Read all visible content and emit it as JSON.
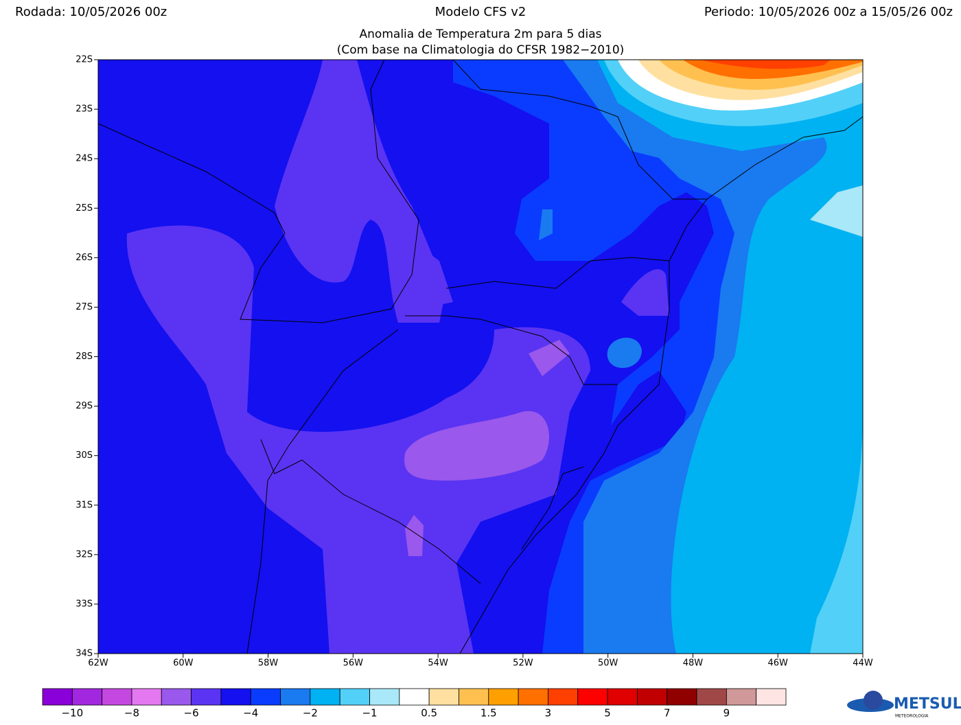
{
  "header": {
    "run": "Rodada: 10/05/2026 00z",
    "model": "Modelo CFS v2",
    "period": "Periodo: 10/05/2026 00z a 15/05/26 00z"
  },
  "title": {
    "line1": "Anomalia de Temperatura 2m para 5 dias",
    "line2": "(Com base na Climatologia do CFSR 1982−2010)"
  },
  "map": {
    "lat_labels": [
      "22S",
      "23S",
      "24S",
      "25S",
      "26S",
      "27S",
      "28S",
      "29S",
      "30S",
      "31S",
      "32S",
      "33S",
      "34S"
    ],
    "lon_labels": [
      "62W",
      "60W",
      "58W",
      "56W",
      "54W",
      "52W",
      "50W",
      "48W",
      "46W",
      "44W"
    ]
  },
  "colorbar": {
    "colors": [
      "#8a00d8",
      "#a228e0",
      "#c448e0",
      "#e478f0",
      "#9a58ec",
      "#5a34f2",
      "#1410f0",
      "#0a3cff",
      "#1a7af0",
      "#00b2f2",
      "#52d0f8",
      "#a8e8f8",
      "#ffffff",
      "#ffe0a0",
      "#ffc050",
      "#ffa000",
      "#ff7000",
      "#ff4000",
      "#ff0000",
      "#e00000",
      "#c00000",
      "#900000",
      "#a04848",
      "#d09898",
      "#ffe4e4"
    ],
    "labels": [
      "−10",
      "−8",
      "−6",
      "−4",
      "−2",
      "−1",
      "0.5",
      "1.5",
      "3",
      "5",
      "7",
      "9"
    ]
  },
  "logo": {
    "name": "METSUL",
    "tagline": "METEOROLOGIA"
  }
}
